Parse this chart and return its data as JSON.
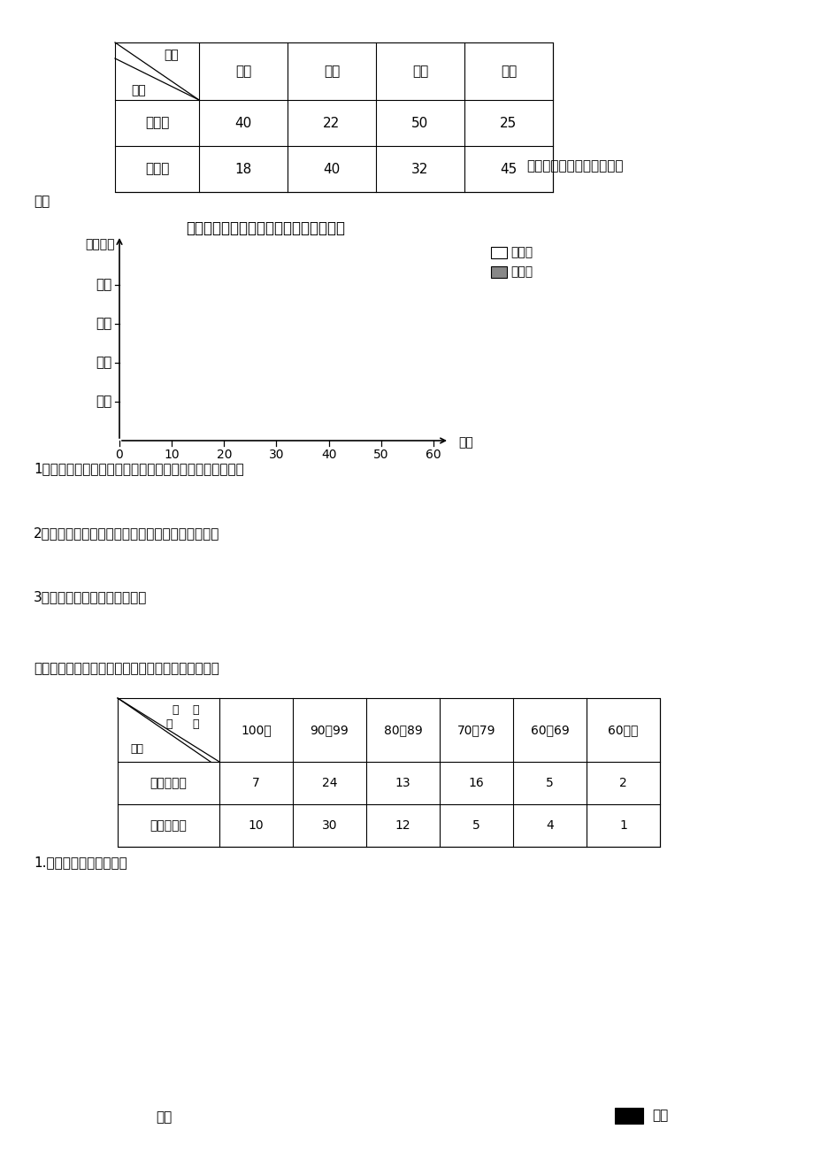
{
  "background_color": "#ffffff",
  "section1": {
    "table1_header_diag_top": "项目",
    "table1_header_diag_bottom": "人数",
    "table1_cols": [
      "美术",
      "书法",
      "电脑",
      "科技"
    ],
    "table1_rows": [
      "中年级",
      "高年级"
    ],
    "table1_data": [
      [
        40,
        22,
        50,
        25
      ],
      [
        18,
        40,
        32,
        45
      ]
    ],
    "right_text": "完成下面的统计图，并回答",
    "right_text2": "题："
  },
  "section2": {
    "chart_title": "中、高年级学生参加兴趣小组情况统计图",
    "ylabel": "兴趣小组",
    "xlabel": "人数",
    "yticks": [
      "科技",
      "电脑",
      "书法",
      "美术"
    ],
    "xticks": [
      0,
      10,
      20,
      30,
      40,
      50,
      60
    ],
    "legend_items": [
      "高年级",
      "中年级"
    ],
    "legend_colors": [
      "#ffffff",
      "#888888"
    ],
    "q1": "1、哪个兴趣小组的人数最多？哪个兴趣小组的人数最少？",
    "q2": "2、中年级学生比较喜欢什么兴趣小组？高年级呢？",
    "q3": "3、你还能提出什么数学问题？"
  },
  "section3": {
    "intro_text": "六。下面是某小学四年级学生体育成绩情况统计表。",
    "table2_cols": [
      "100分",
      "90～99",
      "80～89",
      "70～79",
      "60～69",
      "60以下"
    ],
    "table2_rows": [
      "四年级一班",
      "四年级二班"
    ],
    "table2_data": [
      [
        7,
        24,
        13,
        16,
        5,
        2
      ],
      [
        10,
        30,
        12,
        5,
        4,
        1
      ]
    ],
    "note1": "1.根据上表绘制统计图。",
    "bottom_ylabel": "人数",
    "bottom_legend_label": "一班",
    "bottom_legend_color": "#000000"
  }
}
